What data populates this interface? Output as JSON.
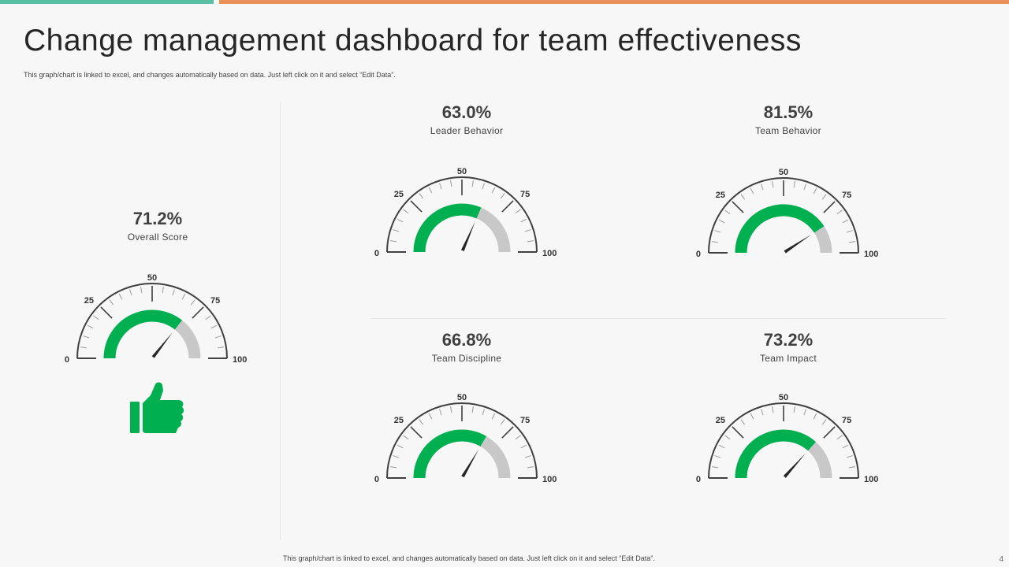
{
  "header": {
    "title": "Change management dashboard for team effectiveness",
    "subtitle": "This graph/chart is linked to excel, and changes automatically based on data. Just left click on it and select “Edit Data”."
  },
  "footer": {
    "note": "This graph/chart is linked to excel, and changes automatically based on data. Just left click on it and select “Edit Data”.",
    "page": "4"
  },
  "colors": {
    "accent_left": "#5bbfa5",
    "accent_right": "#e8915a",
    "gauge_fill": "#00b050",
    "gauge_rest": "#c8c8c8",
    "needle": "#262626",
    "thumb": "#00b050"
  },
  "icons": {
    "thumbs_up": "thumbs-up-icon"
  },
  "chart_data": [
    {
      "type": "gauge",
      "value": 71.2,
      "display": "71.2%",
      "label": "Overall Score",
      "min": 0,
      "max": 100,
      "ticks": [
        "0",
        "25",
        "50",
        "75",
        "100"
      ]
    },
    {
      "type": "gauge",
      "value": 63.0,
      "display": "63.0%",
      "label": "Leader Behavior",
      "min": 0,
      "max": 100,
      "ticks": [
        "0",
        "25",
        "50",
        "75",
        "100"
      ]
    },
    {
      "type": "gauge",
      "value": 81.5,
      "display": "81.5%",
      "label": "Team Behavior",
      "min": 0,
      "max": 100,
      "ticks": [
        "0",
        "25",
        "50",
        "75",
        "100"
      ]
    },
    {
      "type": "gauge",
      "value": 66.8,
      "display": "66.8%",
      "label": "Team Discipline",
      "min": 0,
      "max": 100,
      "ticks": [
        "0",
        "25",
        "50",
        "75",
        "100"
      ]
    },
    {
      "type": "gauge",
      "value": 73.2,
      "display": "73.2%",
      "label": "Team Impact",
      "min": 0,
      "max": 100,
      "ticks": [
        "0",
        "25",
        "50",
        "75",
        "100"
      ]
    }
  ]
}
